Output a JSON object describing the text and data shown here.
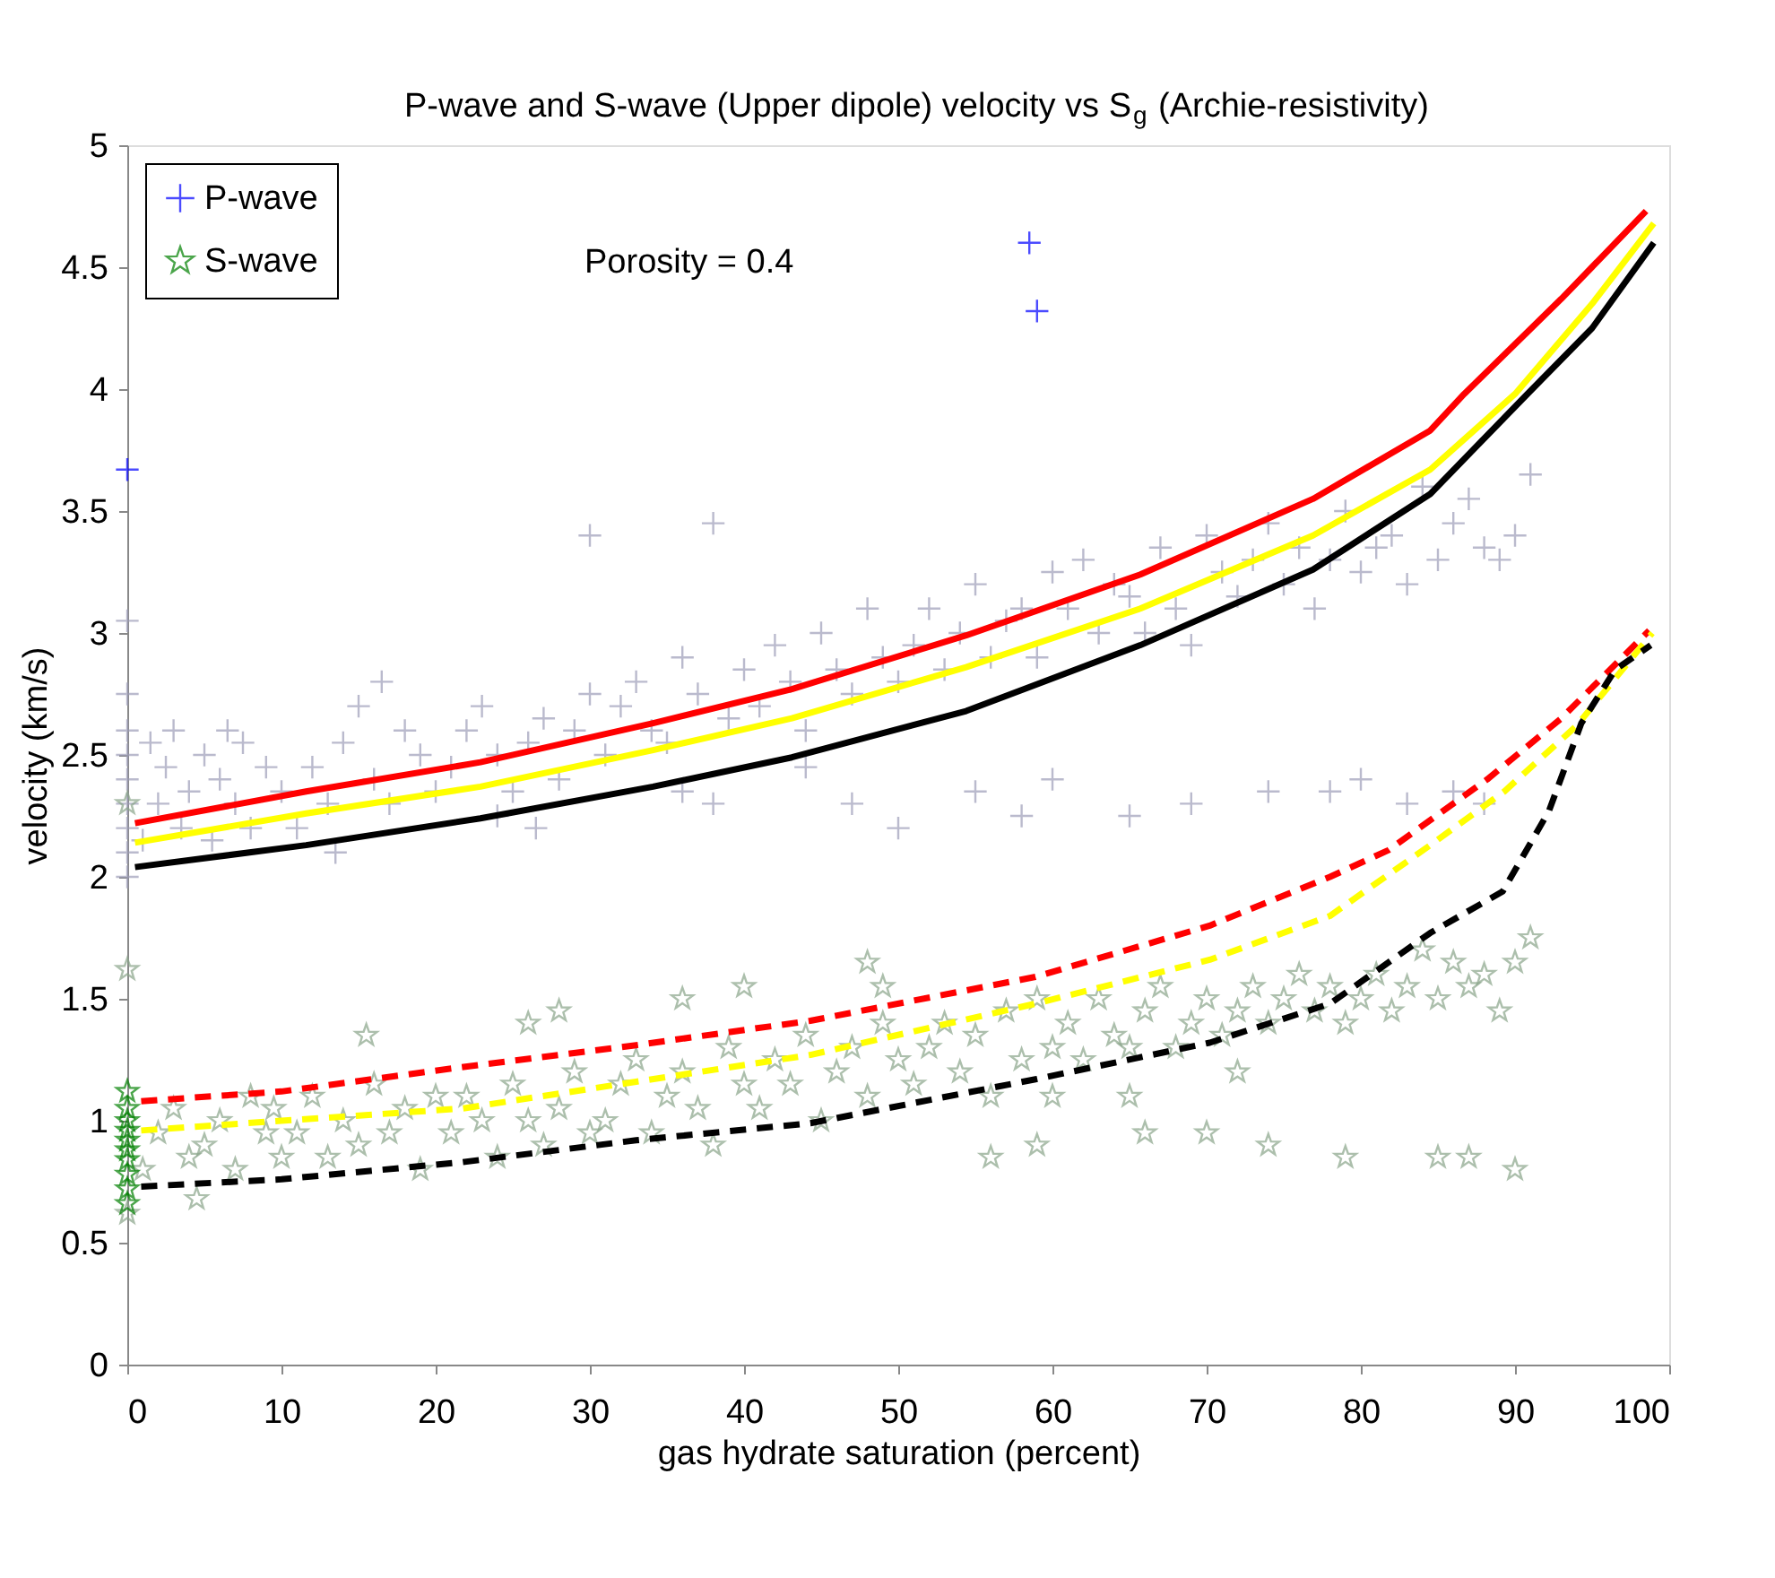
{
  "chart_data": {
    "type": "scatter",
    "title": "P-wave and S-wave (Upper dipole) velocity vs S$_{g}$ (Archie-resistivity)",
    "xlabel": "gas hydrate saturation (percent)",
    "ylabel": "velocity (km/s)",
    "xlim": [
      0,
      100
    ],
    "ylim": [
      0,
      5
    ],
    "xticks": [
      0,
      10,
      20,
      30,
      40,
      50,
      60,
      70,
      80,
      90,
      100
    ],
    "yticks": [
      0,
      0.5,
      1,
      1.5,
      2,
      2.5,
      3,
      3.5,
      4,
      4.5,
      5
    ],
    "grid": false,
    "legend": "top left",
    "annotations": [
      "Porosity = 0.4"
    ],
    "series": [
      {
        "marker": "cross",
        "color": "#9d9db8",
        "x": [
          0,
          0,
          0,
          0,
          0,
          0,
          0,
          0,
          0,
          1,
          1.5,
          2,
          2.5,
          3,
          3.5,
          4,
          5,
          5.5,
          6,
          7,
          7.5,
          8,
          9,
          10,
          6.5,
          11,
          12,
          13,
          14,
          15,
          16,
          17,
          18,
          19,
          20,
          16.5,
          13.5,
          21,
          22,
          23,
          24,
          25,
          26,
          27,
          28,
          29,
          30,
          30,
          24,
          26.5,
          31,
          32,
          33,
          34,
          35,
          36,
          37,
          38,
          39,
          40,
          36,
          38,
          41,
          42,
          43,
          44,
          45,
          46,
          47,
          48,
          49,
          50,
          44,
          47,
          50,
          51,
          52,
          53,
          54,
          55,
          56,
          57,
          58,
          59,
          60,
          55,
          58,
          60,
          61,
          62,
          63,
          64,
          65,
          66,
          67,
          68,
          69,
          70,
          65,
          69,
          71,
          72,
          73,
          74,
          75,
          76,
          77,
          78,
          79,
          80,
          74,
          78,
          80,
          81,
          82,
          83,
          84,
          85,
          86,
          87,
          88,
          89,
          90,
          91,
          83,
          86,
          88
        ],
        "values": [
          2.0,
          2.1,
          2.2,
          2.3,
          2.4,
          2.5,
          2.6,
          3.05,
          2.75,
          2.15,
          2.55,
          2.3,
          2.45,
          2.6,
          2.2,
          2.35,
          2.5,
          2.15,
          2.4,
          2.3,
          2.55,
          2.2,
          2.45,
          2.35,
          2.6,
          2.2,
          2.45,
          2.3,
          2.55,
          2.7,
          2.4,
          2.3,
          2.6,
          2.5,
          2.35,
          2.8,
          2.1,
          2.45,
          2.6,
          2.7,
          2.5,
          2.35,
          2.55,
          2.65,
          2.4,
          2.6,
          2.75,
          3.4,
          2.25,
          2.2,
          2.5,
          2.7,
          2.8,
          2.6,
          2.55,
          2.9,
          2.75,
          3.45,
          2.65,
          2.85,
          2.35,
          2.3,
          2.7,
          2.95,
          2.8,
          2.6,
          3.0,
          2.85,
          2.75,
          3.1,
          2.9,
          2.8,
          2.45,
          2.3,
          2.2,
          2.95,
          3.1,
          2.85,
          3.0,
          3.2,
          2.9,
          3.05,
          3.1,
          2.9,
          3.25,
          2.35,
          2.25,
          2.4,
          3.1,
          3.3,
          3.0,
          3.2,
          3.15,
          3.0,
          3.35,
          3.1,
          2.95,
          3.4,
          2.25,
          2.3,
          3.25,
          3.15,
          3.3,
          3.45,
          3.2,
          3.35,
          3.1,
          3.3,
          3.5,
          3.25,
          2.35,
          2.35,
          2.4,
          3.35,
          3.4,
          3.2,
          3.6,
          3.3,
          3.45,
          3.55,
          3.35,
          3.3,
          3.4,
          3.65,
          2.3,
          2.35,
          2.3
        ]
      },
      {
        "marker": "star",
        "color": "#8aa58a",
        "x": [
          0,
          0,
          0,
          1,
          2,
          3,
          4,
          5,
          6,
          7,
          8,
          9,
          10,
          4.5,
          9.5,
          11,
          12,
          13,
          14,
          15,
          16,
          17,
          18,
          19,
          20,
          15.5,
          21,
          22,
          23,
          24,
          25,
          26,
          27,
          28,
          29,
          30,
          26,
          28,
          31,
          32,
          33,
          34,
          35,
          36,
          37,
          38,
          39,
          40,
          36,
          40,
          41,
          42,
          43,
          44,
          45,
          46,
          47,
          48,
          49,
          50,
          48,
          49,
          51,
          52,
          53,
          54,
          55,
          56,
          57,
          58,
          59,
          60,
          56,
          59,
          60,
          61,
          62,
          63,
          64,
          65,
          66,
          67,
          68,
          69,
          70,
          66,
          70,
          65,
          71,
          72,
          73,
          74,
          75,
          76,
          77,
          78,
          79,
          80,
          74,
          79,
          72,
          81,
          82,
          83,
          84,
          85,
          86,
          87,
          88,
          89,
          90,
          91,
          85,
          87,
          90
        ],
        "values": [
          1.62,
          2.3,
          0.62,
          0.8,
          0.95,
          1.05,
          0.85,
          0.9,
          1.0,
          0.8,
          1.1,
          0.95,
          0.85,
          0.68,
          1.05,
          0.95,
          1.1,
          0.85,
          1.0,
          0.9,
          1.15,
          0.95,
          1.05,
          0.8,
          1.1,
          1.35,
          0.95,
          1.1,
          1.0,
          0.85,
          1.15,
          1.0,
          0.9,
          1.05,
          1.2,
          0.95,
          1.4,
          1.45,
          1.0,
          1.15,
          1.25,
          0.95,
          1.1,
          1.2,
          1.05,
          0.9,
          1.3,
          1.15,
          1.5,
          1.55,
          1.05,
          1.25,
          1.15,
          1.35,
          1.0,
          1.2,
          1.3,
          1.1,
          1.4,
          1.25,
          1.65,
          1.55,
          1.15,
          1.3,
          1.4,
          1.2,
          1.35,
          1.1,
          1.45,
          1.25,
          1.5,
          1.3,
          0.85,
          0.9,
          1.1,
          1.4,
          1.25,
          1.5,
          1.35,
          1.3,
          1.45,
          1.55,
          1.3,
          1.4,
          1.5,
          0.95,
          0.95,
          1.1,
          1.35,
          1.45,
          1.55,
          1.4,
          1.5,
          1.6,
          1.45,
          1.55,
          1.4,
          1.5,
          0.9,
          0.85,
          1.2,
          1.6,
          1.45,
          1.55,
          1.7,
          1.5,
          1.65,
          1.55,
          1.6,
          1.45,
          1.65,
          1.75,
          0.85,
          0.85,
          0.8
        ]
      },
      {
        "marker": "cross",
        "name": "P-wave",
        "color": "#0000ff",
        "x": [
          0,
          58.5,
          59
        ],
        "values": [
          3.67,
          4.6,
          4.32
        ]
      },
      {
        "marker": "star",
        "name": "S-wave",
        "color": "#008000",
        "x": [
          0,
          0,
          0,
          0,
          0,
          0,
          0,
          0,
          0,
          0
        ],
        "values": [
          0.66,
          0.72,
          0.78,
          0.84,
          0.88,
          0.92,
          0.96,
          1.0,
          1.05,
          1.12
        ]
      },
      {
        "type": "line",
        "line_style": "solid",
        "color": "#ff0000",
        "x": [
          0.5,
          11.6,
          22.9,
          34.1,
          43.1,
          54.4,
          65.7,
          76.9,
          84.5,
          86.7,
          93,
          98.5
        ],
        "values": [
          2.22,
          2.35,
          2.47,
          2.63,
          2.77,
          2.99,
          3.24,
          3.55,
          3.83,
          3.98,
          4.37,
          4.73
        ]
      },
      {
        "type": "line",
        "line_style": "solid",
        "color": "#ffff00",
        "x": [
          0.5,
          11.6,
          22.9,
          34.1,
          43.1,
          54.4,
          65.7,
          76.9,
          84.5,
          90,
          95,
          99
        ],
        "values": [
          2.14,
          2.26,
          2.37,
          2.52,
          2.65,
          2.86,
          3.1,
          3.4,
          3.67,
          3.98,
          4.35,
          4.68
        ]
      },
      {
        "type": "line",
        "line_style": "solid",
        "color": "#000000",
        "x": [
          0.5,
          11.6,
          22.9,
          34.1,
          43.1,
          54.4,
          65.7,
          76.9,
          84.5,
          90.8,
          95,
          99
        ],
        "values": [
          2.04,
          2.13,
          2.24,
          2.37,
          2.49,
          2.68,
          2.95,
          3.26,
          3.57,
          3.98,
          4.25,
          4.6
        ]
      },
      {
        "type": "line",
        "line_style": "dashed",
        "color": "#ff0000",
        "x": [
          0.9,
          10,
          21.7,
          33,
          44.3,
          58.9,
          70.2,
          78,
          81.8,
          88.2,
          93,
          98.7
        ],
        "values": [
          1.08,
          1.12,
          1.22,
          1.31,
          1.41,
          1.59,
          1.8,
          2.0,
          2.11,
          2.4,
          2.65,
          3.01
        ]
      },
      {
        "type": "line",
        "line_style": "dashed",
        "color": "#ffff00",
        "x": [
          0.9,
          10,
          21.7,
          33,
          44.3,
          58.9,
          70.2,
          78,
          84.5,
          89.3,
          94,
          98.9
        ],
        "values": [
          0.96,
          1.0,
          1.05,
          1.16,
          1.27,
          1.48,
          1.66,
          1.84,
          2.13,
          2.35,
          2.62,
          3.0
        ]
      },
      {
        "type": "line",
        "line_style": "dashed",
        "color": "#000000",
        "x": [
          0.9,
          10,
          21.7,
          33,
          44.3,
          58.9,
          70.2,
          78,
          84.5,
          89.2,
          92.2,
          94.3,
          96.5,
          98.8
        ],
        "values": [
          0.73,
          0.76,
          0.83,
          0.92,
          0.99,
          1.17,
          1.32,
          1.48,
          1.77,
          1.94,
          2.27,
          2.63,
          2.85,
          2.95
        ]
      }
    ]
  }
}
